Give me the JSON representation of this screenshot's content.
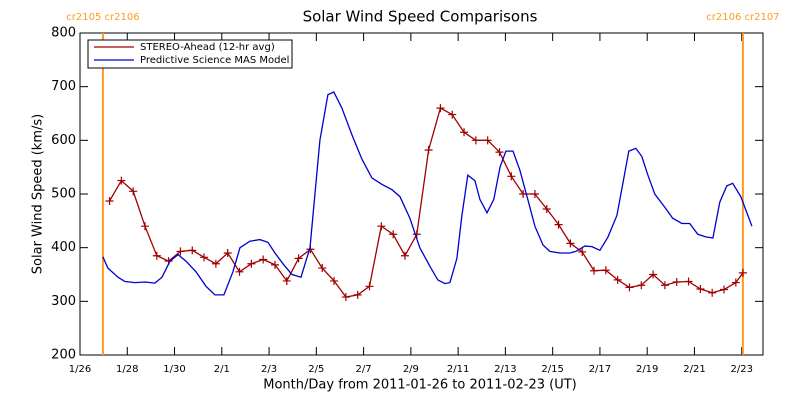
{
  "chart_data": {
    "type": "line",
    "title": "Solar Wind Speed Comparisons",
    "xlabel": "Month/Day from 2011-01-26 to 2011-02-23 (UT)",
    "ylabel": "Solar Wind Speed (km/s)",
    "xlim": [
      0,
      28.9
    ],
    "xticks": [
      {
        "value": 0,
        "label": "1/26"
      },
      {
        "value": 2,
        "label": "1/28"
      },
      {
        "value": 4,
        "label": "1/30"
      },
      {
        "value": 6,
        "label": "2/1"
      },
      {
        "value": 8,
        "label": "2/3"
      },
      {
        "value": 10,
        "label": "2/5"
      },
      {
        "value": 12,
        "label": "2/7"
      },
      {
        "value": 14,
        "label": "2/9"
      },
      {
        "value": 16,
        "label": "2/11"
      },
      {
        "value": 18,
        "label": "2/13"
      },
      {
        "value": 20,
        "label": "2/15"
      },
      {
        "value": 22,
        "label": "2/17"
      },
      {
        "value": 24,
        "label": "2/19"
      },
      {
        "value": 26,
        "label": "2/21"
      },
      {
        "value": 28,
        "label": "2/23"
      }
    ],
    "ylim": [
      200,
      800
    ],
    "yticks": [
      200,
      300,
      400,
      500,
      600,
      700,
      800
    ],
    "legend": "upper left",
    "markers": [
      {
        "x": 0.97,
        "label": "cr2105 cr2106",
        "color": "#ff9a1f"
      },
      {
        "x": 28.05,
        "label": "cr2106 cr2107",
        "color": "#ff9a1f"
      }
    ],
    "series": [
      {
        "name": "STEREO-Ahead (12-hr avg)",
        "color": "#a00000",
        "symbol": "+",
        "x": [
          1.25,
          1.75,
          2.25,
          2.75,
          3.25,
          3.75,
          4.25,
          4.75,
          5.25,
          5.75,
          6.25,
          6.75,
          7.25,
          7.75,
          8.25,
          8.75,
          9.25,
          9.75,
          10.25,
          10.75,
          11.25,
          11.75,
          12.25,
          12.75,
          13.25,
          13.75,
          14.25,
          14.75,
          15.25,
          15.75,
          16.25,
          16.75,
          17.25,
          17.75,
          18.25,
          18.75,
          19.25,
          19.75,
          20.25,
          20.75,
          21.25,
          21.75,
          22.25,
          22.75,
          23.25,
          23.75,
          24.25,
          24.75,
          25.25,
          25.75,
          26.25,
          26.75,
          27.25,
          27.75,
          28.05
        ],
        "values": [
          487,
          525,
          505,
          440,
          385,
          375,
          393,
          395,
          382,
          370,
          390,
          355,
          370,
          378,
          368,
          338,
          380,
          397,
          362,
          338,
          308,
          312,
          328,
          440,
          425,
          385,
          425,
          582,
          660,
          648,
          615,
          600,
          600,
          578,
          533,
          500,
          500,
          472,
          443,
          408,
          392,
          357,
          358,
          340,
          326,
          330,
          350,
          330,
          336,
          337,
          323,
          316,
          322,
          335,
          353
        ]
      },
      {
        "name": "Predictive Science MAS Model",
        "color": "#0000d0",
        "x": [
          0.97,
          1.18,
          1.61,
          1.9,
          2.33,
          2.75,
          3.17,
          3.47,
          3.81,
          4.15,
          4.48,
          4.91,
          5.33,
          5.71,
          6.09,
          6.47,
          6.77,
          7.19,
          7.61,
          7.95,
          8.25,
          8.59,
          8.97,
          9.35,
          9.73,
          10.15,
          10.49,
          10.74,
          11.08,
          11.51,
          11.93,
          12.35,
          12.77,
          13.2,
          13.54,
          13.96,
          14.38,
          14.81,
          15.14,
          15.44,
          15.65,
          15.95,
          16.16,
          16.41,
          16.71,
          16.92,
          17.22,
          17.51,
          17.77,
          18.02,
          18.32,
          18.61,
          18.95,
          19.25,
          19.59,
          19.88,
          20.3,
          20.73,
          20.98,
          21.36,
          21.66,
          22.0,
          22.34,
          22.72,
          22.97,
          23.22,
          23.52,
          23.77,
          24.03,
          24.32,
          24.75,
          25.08,
          25.47,
          25.8,
          26.14,
          26.48,
          26.78,
          27.07,
          27.37,
          27.62,
          27.96,
          28.26,
          28.43
        ],
        "values": [
          383,
          362,
          345,
          337,
          335,
          336,
          334,
          345,
          375,
          387,
          375,
          355,
          328,
          312,
          312,
          355,
          400,
          412,
          415,
          410,
          390,
          370,
          350,
          345,
          400,
          600,
          685,
          690,
          660,
          610,
          565,
          530,
          518,
          508,
          495,
          455,
          400,
          365,
          340,
          333,
          335,
          380,
          460,
          535,
          525,
          490,
          465,
          490,
          550,
          580,
          580,
          545,
          490,
          440,
          405,
          393,
          390,
          390,
          393,
          403,
          402,
          395,
          420,
          460,
          520,
          580,
          585,
          570,
          535,
          500,
          475,
          455,
          445,
          445,
          425,
          420,
          418,
          485,
          515,
          520,
          495,
          460,
          440
        ]
      }
    ]
  }
}
